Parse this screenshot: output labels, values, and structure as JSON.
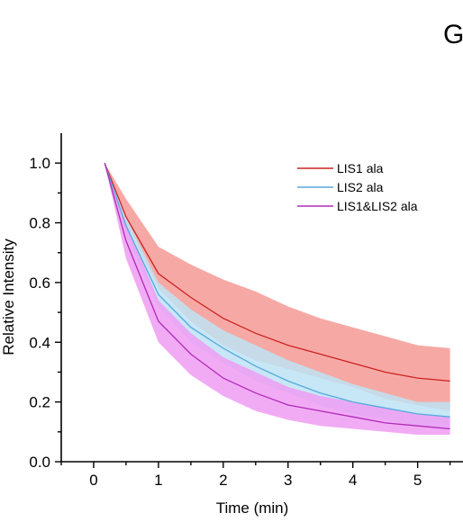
{
  "panel_label": "G",
  "chart_data": {
    "type": "line",
    "title": "",
    "xlabel": "Time (min)",
    "ylabel": "Relative Intensity",
    "xlim": [
      -0.5,
      5.7
    ],
    "ylim": [
      0,
      1.1
    ],
    "x_ticks": [
      0,
      1,
      2,
      3,
      4,
      5
    ],
    "x_tick_labels": [
      "0",
      "1",
      "2",
      "3",
      "4",
      "5"
    ],
    "y_ticks": [
      0.0,
      0.2,
      0.4,
      0.6,
      0.8,
      1.0
    ],
    "y_tick_labels": [
      "0.0",
      "0.2",
      "0.4",
      "0.6",
      "0.8",
      "1.0"
    ],
    "grid": false,
    "legend_position": "top-right",
    "x": [
      0.17,
      0.5,
      1.0,
      1.5,
      2.0,
      2.5,
      3.0,
      3.5,
      4.0,
      4.5,
      5.0,
      5.5
    ],
    "series": [
      {
        "name": "LIS1 ala",
        "color": "#cc2222",
        "band_color": "#f49a94",
        "values": [
          1.0,
          0.82,
          0.63,
          0.55,
          0.48,
          0.43,
          0.39,
          0.36,
          0.33,
          0.3,
          0.28,
          0.27
        ],
        "lower": [
          1.0,
          0.8,
          0.58,
          0.47,
          0.39,
          0.34,
          0.31,
          0.28,
          0.25,
          0.21,
          0.19,
          0.17
        ],
        "upper": [
          1.0,
          0.88,
          0.72,
          0.66,
          0.61,
          0.57,
          0.52,
          0.48,
          0.45,
          0.42,
          0.39,
          0.38
        ]
      },
      {
        "name": "LIS2 ala",
        "color": "#55aadd",
        "band_color": "#bde3f5",
        "values": [
          1.0,
          0.79,
          0.56,
          0.45,
          0.38,
          0.32,
          0.27,
          0.23,
          0.2,
          0.18,
          0.16,
          0.15
        ],
        "lower": [
          1.0,
          0.76,
          0.52,
          0.4,
          0.33,
          0.27,
          0.23,
          0.19,
          0.16,
          0.14,
          0.12,
          0.11
        ],
        "upper": [
          1.0,
          0.82,
          0.6,
          0.51,
          0.44,
          0.39,
          0.34,
          0.3,
          0.26,
          0.23,
          0.2,
          0.2
        ]
      },
      {
        "name": "LIS1&LIS2 ala",
        "color": "#b02ab8",
        "band_color": "#ee9cf2",
        "values": [
          1.0,
          0.74,
          0.47,
          0.36,
          0.28,
          0.23,
          0.19,
          0.17,
          0.15,
          0.13,
          0.12,
          0.11
        ],
        "lower": [
          1.0,
          0.68,
          0.4,
          0.29,
          0.22,
          0.17,
          0.14,
          0.12,
          0.11,
          0.1,
          0.09,
          0.09
        ],
        "upper": [
          1.0,
          0.8,
          0.54,
          0.43,
          0.35,
          0.3,
          0.25,
          0.22,
          0.2,
          0.18,
          0.16,
          0.15
        ]
      }
    ]
  }
}
